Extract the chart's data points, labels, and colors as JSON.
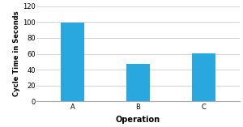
{
  "categories": [
    "A",
    "B",
    "C"
  ],
  "values": [
    99,
    47,
    61
  ],
  "bar_color": "#29A8E0",
  "xlabel": "Operation",
  "ylabel": "Cycle Time in Seconds",
  "ylim": [
    0,
    120
  ],
  "yticks": [
    0,
    20,
    40,
    60,
    80,
    100,
    120
  ],
  "background_color": "#ffffff",
  "xlabel_fontsize": 7,
  "ylabel_fontsize": 6,
  "tick_fontsize": 6,
  "bar_width": 0.35,
  "grid_color": "#cccccc",
  "spine_color": "#aaaaaa"
}
